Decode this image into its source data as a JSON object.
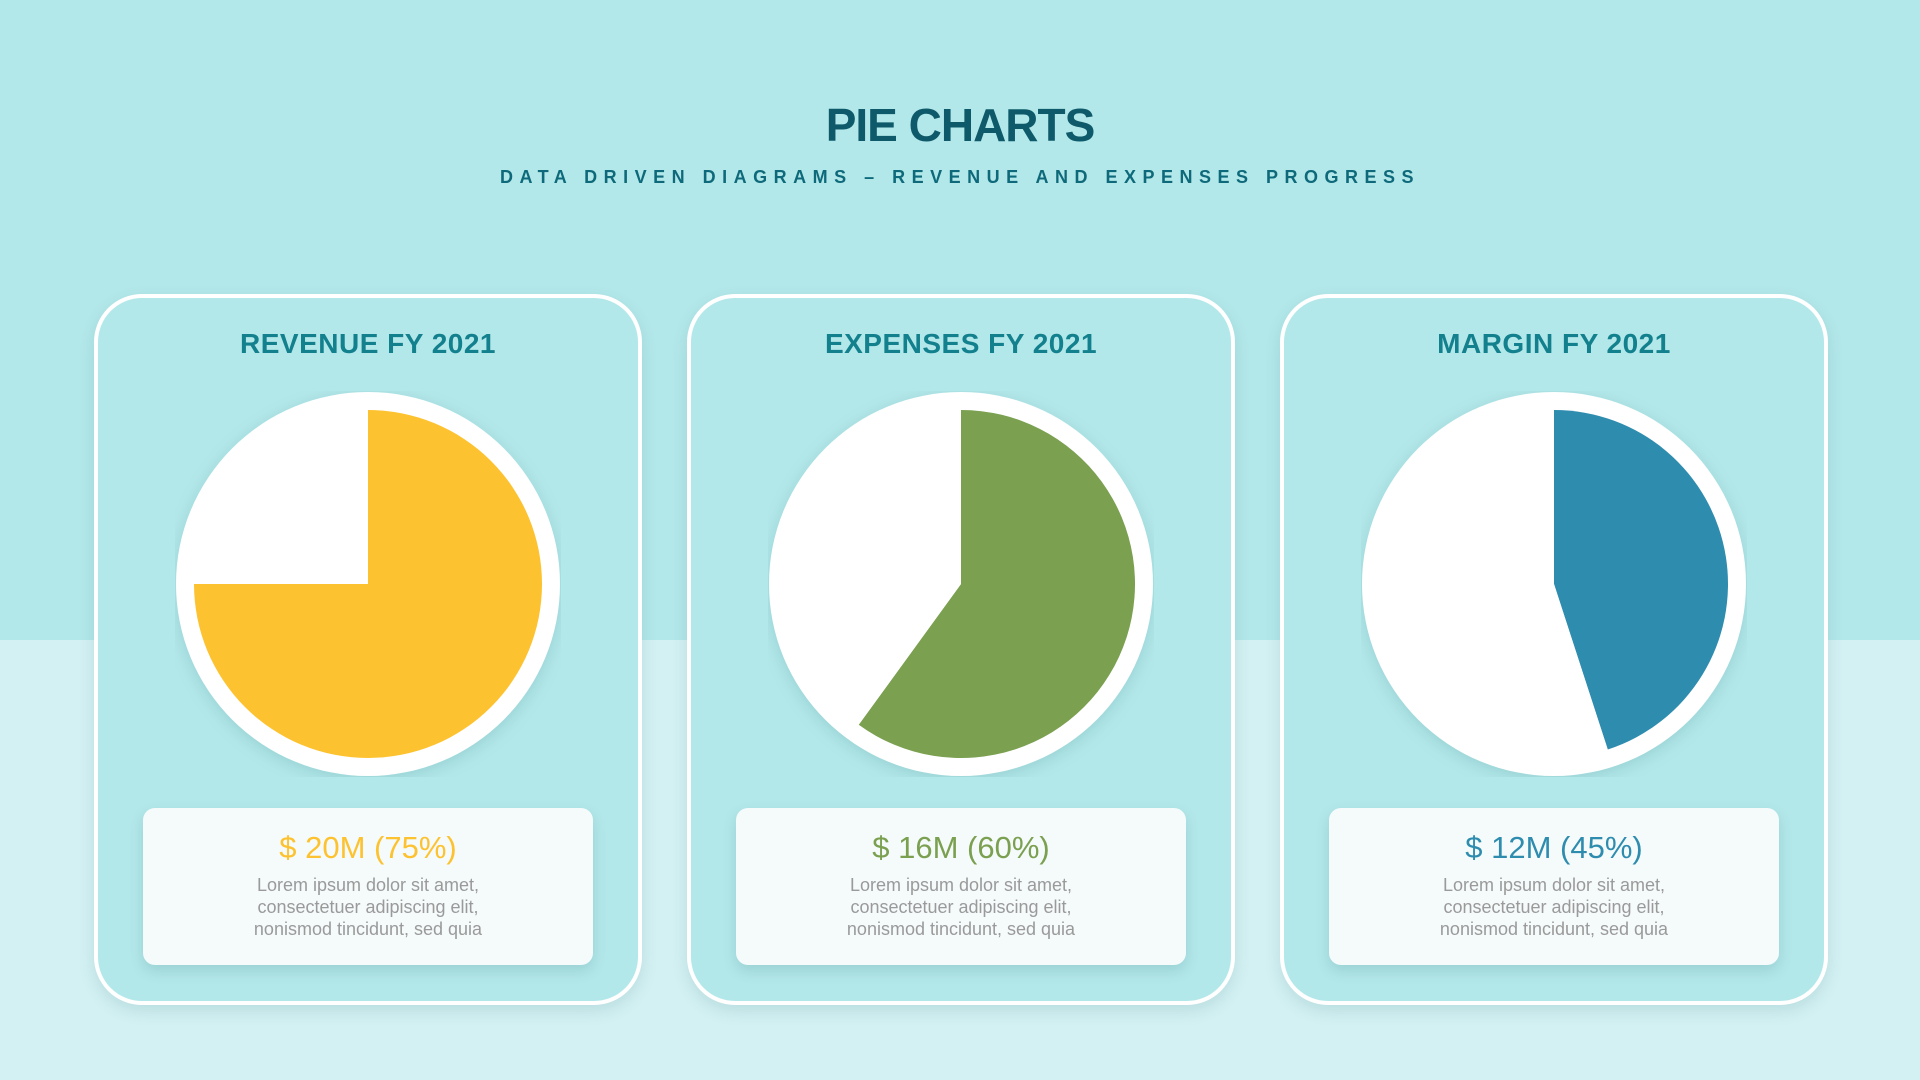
{
  "header": {
    "title": "PIE CHARTS",
    "subtitle": "DATA DRIVEN DIAGRAMS – REVENUE AND EXPENSES PROGRESS"
  },
  "chart_data": [
    {
      "type": "pie",
      "title": "REVENUE FY 2021",
      "value_label": "$ 20M (75%)",
      "values": [
        75,
        25
      ],
      "color": "#fdc22f",
      "description": [
        "Lorem ipsum dolor sit amet,",
        "consectetuer adipiscing elit,",
        "nonismod tincidunt, sed quia"
      ]
    },
    {
      "type": "pie",
      "title": "EXPENSES FY 2021",
      "value_label": "$ 16M (60%)",
      "values": [
        60,
        40
      ],
      "color": "#7aa050",
      "description": [
        "Lorem ipsum dolor sit amet,",
        "consectetuer adipiscing elit,",
        "nonismod tincidunt, sed quia"
      ]
    },
    {
      "type": "pie",
      "title": "MARGIN FY 2021",
      "value_label": "$ 12M (45%)",
      "values": [
        45,
        55
      ],
      "color": "#2e8caf",
      "description": [
        "Lorem ipsum dolor sit amet,",
        "consectetuer adipiscing elit,",
        "nonismod tincidunt, sed quia"
      ]
    }
  ]
}
